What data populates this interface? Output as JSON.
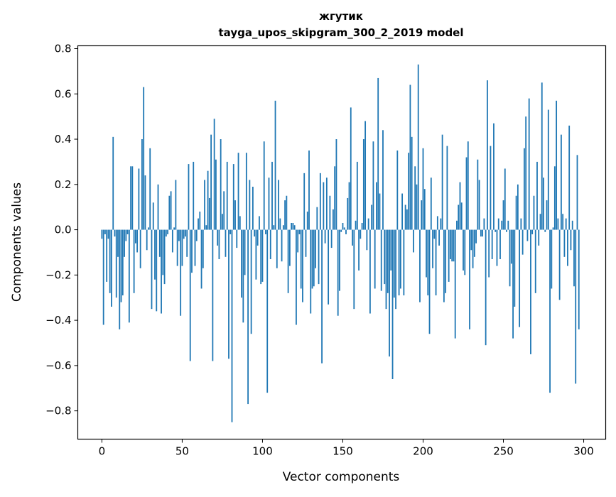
{
  "chart_data": {
    "type": "bar",
    "title": "жгутик",
    "subtitle": "tayga_upos_skipgram_300_2_2019 model",
    "xlabel": "Vector components",
    "ylabel": "Components values",
    "xlim": [
      -15,
      313.7
    ],
    "ylim": [
      -0.925,
      0.8125
    ],
    "xticks": [
      0,
      50,
      100,
      150,
      200,
      250,
      300
    ],
    "xtick_labels": [
      "0",
      "50",
      "100",
      "150",
      "200",
      "250",
      "300"
    ],
    "yticks": [
      -0.8,
      -0.6,
      -0.4,
      -0.2,
      0.0,
      0.2,
      0.4,
      0.6,
      0.8
    ],
    "ytick_labels": [
      "−0.8",
      "−0.6",
      "−0.4",
      "−0.2",
      "0.0",
      "0.2",
      "0.4",
      "0.6",
      "0.8"
    ],
    "grid": false,
    "bar_color": "#1f77b4",
    "values": [
      -0.04,
      -0.42,
      -0.02,
      -0.23,
      -0.04,
      -0.28,
      -0.34,
      0.41,
      -0.03,
      -0.3,
      -0.12,
      -0.44,
      -0.32,
      -0.29,
      -0.12,
      -0.05,
      -0.02,
      -0.41,
      0.28,
      0.28,
      -0.28,
      -0.06,
      -0.1,
      0.27,
      -0.17,
      0.4,
      0.63,
      0.24,
      -0.09,
      0.01,
      0.36,
      -0.35,
      0.12,
      -0.22,
      -0.36,
      0.2,
      -0.12,
      -0.37,
      -0.2,
      -0.24,
      -0.03,
      -0.02,
      0.15,
      0.17,
      -0.1,
      0.01,
      0.22,
      -0.16,
      -0.05,
      -0.38,
      -0.16,
      -0.04,
      -0.03,
      -0.12,
      0.29,
      -0.58,
      -0.19,
      0.3,
      -0.16,
      -0.05,
      0.05,
      0.08,
      -0.26,
      -0.17,
      0.22,
      0.02,
      0.26,
      0.14,
      0.42,
      -0.58,
      0.49,
      0.31,
      -0.07,
      -0.13,
      0.4,
      0.07,
      0.17,
      -0.12,
      0.3,
      -0.57,
      -0.02,
      -0.85,
      0.29,
      0.13,
      -0.08,
      0.34,
      0.06,
      -0.3,
      -0.41,
      -0.2,
      0.34,
      -0.77,
      0.22,
      -0.46,
      0.19,
      -0.03,
      -0.22,
      -0.07,
      0.06,
      -0.24,
      -0.23,
      0.39,
      -0.02,
      -0.72,
      0.23,
      -0.13,
      0.3,
      0.02,
      0.57,
      -0.17,
      0.22,
      0.05,
      -0.14,
      0.02,
      0.13,
      0.15,
      -0.28,
      -0.16,
      0.03,
      0.03,
      0.02,
      -0.42,
      -0.1,
      -0.02,
      -0.26,
      -0.32,
      0.25,
      -0.12,
      0.08,
      0.35,
      -0.37,
      -0.26,
      -0.25,
      -0.17,
      0.1,
      -0.24,
      0.25,
      -0.59,
      0.21,
      -0.06,
      0.23,
      -0.33,
      0.15,
      -0.08,
      0.09,
      0.28,
      0.4,
      -0.38,
      -0.27,
      -0.01,
      0.03,
      0.01,
      -0.02,
      0.14,
      0.21,
      0.54,
      -0.07,
      -0.35,
      0.04,
      0.3,
      -0.18,
      -0.04,
      0.03,
      0.4,
      0.48,
      -0.09,
      0.05,
      -0.37,
      0.11,
      0.39,
      -0.26,
      0.21,
      0.67,
      0.16,
      -0.27,
      0.44,
      -0.24,
      -0.35,
      -0.28,
      -0.56,
      -0.18,
      -0.66,
      -0.3,
      -0.35,
      0.35,
      -0.29,
      -0.26,
      0.16,
      -0.29,
      0.11,
      0.09,
      0.34,
      0.64,
      0.41,
      -0.1,
      0.28,
      0.2,
      0.73,
      -0.32,
      0.13,
      0.36,
      0.18,
      -0.21,
      -0.29,
      -0.46,
      0.23,
      -0.17,
      -0.04,
      -0.29,
      0.06,
      -0.07,
      0.05,
      0.42,
      -0.32,
      -0.28,
      0.37,
      -0.23,
      -0.13,
      -0.14,
      -0.14,
      -0.48,
      0.04,
      0.11,
      0.21,
      0.12,
      -0.18,
      -0.2,
      0.32,
      0.39,
      -0.44,
      -0.09,
      -0.17,
      -0.12,
      -0.06,
      0.31,
      0.22,
      -0.03,
      -0.03,
      0.05,
      -0.51,
      0.66,
      -0.21,
      0.37,
      -0.13,
      0.47,
      -0.01,
      -0.16,
      0.05,
      -0.13,
      0.04,
      0.13,
      0.27,
      -0.01,
      0.04,
      -0.25,
      -0.15,
      -0.48,
      -0.34,
      0.15,
      0.2,
      -0.43,
      0.05,
      -0.11,
      0.36,
      0.5,
      -0.05,
      0.58,
      -0.55,
      -0.02,
      0.15,
      -0.28,
      0.3,
      -0.07,
      0.07,
      0.65,
      0.23,
      -0.01,
      0.13,
      0.53,
      -0.72,
      -0.26,
      0.01,
      0.28,
      0.57,
      0.05,
      -0.31,
      0.42,
      0.07,
      -0.12,
      0.05,
      -0.16,
      0.46,
      -0.09,
      0.04,
      -0.25,
      -0.68,
      0.33,
      -0.44
    ]
  }
}
